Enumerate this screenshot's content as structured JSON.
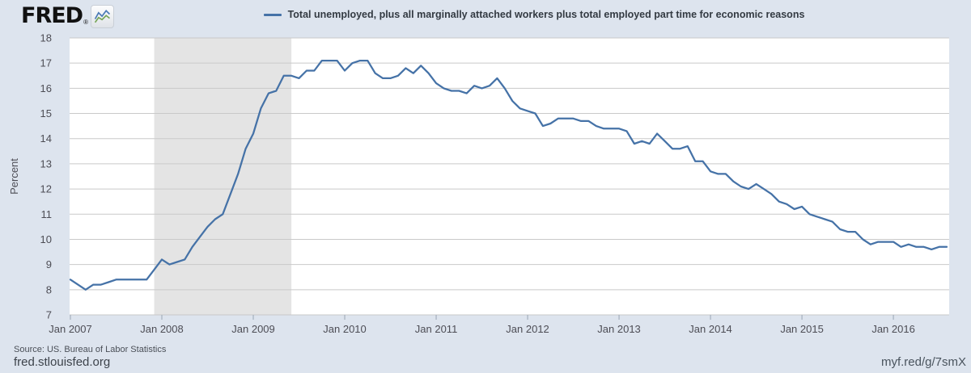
{
  "header": {
    "logo_text": "FRED",
    "logo_registered": "®",
    "logo_icon": {
      "name": "fred-logo-chart-icon",
      "line1_color": "#4a7ab5",
      "line2_color": "#76a558"
    },
    "legend": {
      "label": "Total unemployed, plus all marginally attached workers plus total employed part time for economic reasons",
      "line_color": "#4572a7"
    }
  },
  "footer": {
    "source": "Source: US. Bureau of Labor Statistics",
    "site": "fred.stlouisfed.org",
    "short_url": "myf.red/g/7smX"
  },
  "chart_data": {
    "type": "line",
    "title": "",
    "xlabel": "",
    "ylabel": "Percent",
    "ylim": [
      7,
      18
    ],
    "y_ticks": [
      "18",
      "17",
      "16",
      "15",
      "14",
      "13",
      "12",
      "11",
      "10",
      "9",
      "8",
      "7"
    ],
    "x_tick_labels": [
      "Jan 2007",
      "Jan 2008",
      "Jan 2009",
      "Jan 2010",
      "Jan 2011",
      "Jan 2012",
      "Jan 2013",
      "Jan 2014",
      "Jan 2015",
      "Jan 2016"
    ],
    "frequency": "monthly",
    "start_date": "2007-01",
    "end_date": "2016-08",
    "grid": "horizontal",
    "legend_position": "top-center",
    "recession_bands": [
      {
        "start": "2007-12",
        "end": "2009-06"
      }
    ],
    "colors": {
      "page_bg": "#dde4ee",
      "plot_bg": "#ffffff",
      "gridline": "#c9c9c9",
      "recession": "#e4e4e4",
      "line": "#4572a7",
      "tick_mark": "#9aa6b4",
      "axis_text": "#4d4d55"
    },
    "series": [
      {
        "name": "Total unemployed, plus all marginally attached workers plus total employed part time for economic reasons",
        "color": "#4572a7",
        "values": [
          8.4,
          8.2,
          8.0,
          8.2,
          8.2,
          8.3,
          8.4,
          8.4,
          8.4,
          8.4,
          8.4,
          8.8,
          9.2,
          9.0,
          9.1,
          9.2,
          9.7,
          10.1,
          10.5,
          10.8,
          11.0,
          11.8,
          12.6,
          13.6,
          14.2,
          15.2,
          15.8,
          15.9,
          16.5,
          16.5,
          16.4,
          16.7,
          16.7,
          17.1,
          17.1,
          17.1,
          16.7,
          17.0,
          17.1,
          17.1,
          16.6,
          16.4,
          16.4,
          16.5,
          16.8,
          16.6,
          16.9,
          16.6,
          16.2,
          16.0,
          15.9,
          15.9,
          15.8,
          16.1,
          16.0,
          16.1,
          16.4,
          16.0,
          15.5,
          15.2,
          15.1,
          15.0,
          14.5,
          14.6,
          14.8,
          14.8,
          14.8,
          14.7,
          14.7,
          14.5,
          14.4,
          14.4,
          14.4,
          14.3,
          13.8,
          13.9,
          13.8,
          14.2,
          13.9,
          13.6,
          13.6,
          13.7,
          13.1,
          13.1,
          12.7,
          12.6,
          12.6,
          12.3,
          12.1,
          12.0,
          12.2,
          12.0,
          11.8,
          11.5,
          11.4,
          11.2,
          11.3,
          11.0,
          10.9,
          10.8,
          10.7,
          10.4,
          10.3,
          10.3,
          10.0,
          9.8,
          9.9,
          9.9,
          9.9,
          9.7,
          9.8,
          9.7,
          9.7,
          9.6,
          9.7,
          9.7
        ]
      }
    ]
  }
}
